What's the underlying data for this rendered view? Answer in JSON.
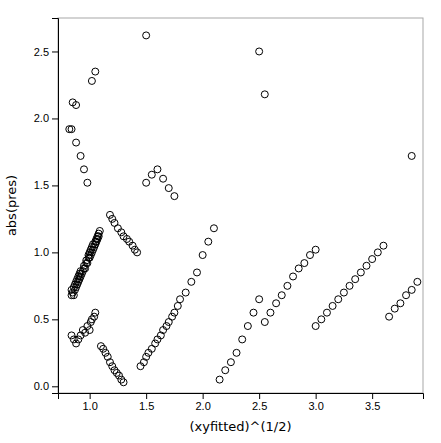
{
  "chart_data": {
    "type": "scatter",
    "xlabel": "(xyfitted)^(1/2)",
    "ylabel": "abs(pres)",
    "color": "black",
    "marker": "open-circle",
    "grid": false,
    "xlim": [
      0.72,
      3.95
    ],
    "ylim": [
      -0.05,
      2.75
    ],
    "xticks": [
      {
        "value": 1.0,
        "label": "1.0"
      },
      1.5,
      {
        "value": 2.0,
        "label": "2.0"
      },
      2.5,
      {
        "value": 3.0,
        "label": "3.0"
      },
      3.5
    ],
    "yticks": [
      {
        "value": 0.0,
        "label": "0.0"
      },
      0.5,
      {
        "value": 1.0,
        "label": "1.0"
      },
      1.5,
      {
        "value": 2.0,
        "label": "2.0"
      },
      2.5
    ],
    "x": [
      0.84,
      0.84,
      0.85,
      0.86,
      0.86,
      0.87,
      0.87,
      0.88,
      0.88,
      0.89,
      0.89,
      0.9,
      0.9,
      0.91,
      0.91,
      0.92,
      0.92,
      0.93,
      0.94,
      0.95,
      0.95,
      0.96,
      0.97,
      0.97,
      0.98,
      0.99,
      0.99,
      1.0,
      1.0,
      1.01,
      1.01,
      1.02,
      1.02,
      1.03,
      1.03,
      1.04,
      1.05,
      1.05,
      1.06,
      1.06,
      1.07,
      1.07,
      1.08,
      1.08,
      1.09,
      0.84,
      0.86,
      0.88,
      0.9,
      0.92,
      0.94,
      0.96,
      0.98,
      1.0,
      1.01,
      1.02,
      1.04,
      1.05,
      1.1,
      1.12,
      1.14,
      1.16,
      1.18,
      1.2,
      1.22,
      1.24,
      1.26,
      1.28,
      1.3,
      1.18,
      1.2,
      1.22,
      1.25,
      1.28,
      1.3,
      1.33,
      1.35,
      1.38,
      1.4,
      1.42,
      1.45,
      1.48,
      1.5,
      1.52,
      1.55,
      1.58,
      1.6,
      1.63,
      1.65,
      1.68,
      1.7,
      1.73,
      1.75,
      1.78,
      1.8,
      1.85,
      1.9,
      1.95,
      2.0,
      2.05,
      2.1,
      2.15,
      2.2,
      2.25,
      2.3,
      2.35,
      2.4,
      2.45,
      2.5,
      1.5,
      1.55,
      1.6,
      1.65,
      1.7,
      1.75,
      2.55,
      2.6,
      2.65,
      2.7,
      2.75,
      2.8,
      2.85,
      2.9,
      2.95,
      3.0,
      3.0,
      3.05,
      3.1,
      3.15,
      3.2,
      3.25,
      3.3,
      3.35,
      3.4,
      3.45,
      3.5,
      3.55,
      3.6,
      3.65,
      3.7,
      3.75,
      3.8,
      3.85,
      3.9,
      0.82,
      0.85,
      0.88,
      0.92,
      0.95,
      0.98,
      1.02,
      1.05,
      0.84,
      0.88,
      1.5,
      2.5,
      2.55,
      3.85
    ],
    "values": [
      0.68,
      0.72,
      0.7,
      0.68,
      0.74,
      0.72,
      0.76,
      0.74,
      0.78,
      0.76,
      0.8,
      0.78,
      0.82,
      0.8,
      0.84,
      0.82,
      0.86,
      0.84,
      0.86,
      0.88,
      0.9,
      0.88,
      0.92,
      0.94,
      0.92,
      0.96,
      0.98,
      0.96,
      1.0,
      0.98,
      1.02,
      1.0,
      1.04,
      1.02,
      1.06,
      1.04,
      1.08,
      1.06,
      1.1,
      1.08,
      1.12,
      1.1,
      1.14,
      1.12,
      1.16,
      0.38,
      0.35,
      0.32,
      0.35,
      0.38,
      0.42,
      0.4,
      0.45,
      0.42,
      0.48,
      0.5,
      0.52,
      0.55,
      0.3,
      0.28,
      0.25,
      0.22,
      0.18,
      0.15,
      0.12,
      0.1,
      0.08,
      0.05,
      0.03,
      1.28,
      1.25,
      1.22,
      1.18,
      1.15,
      1.12,
      1.1,
      1.08,
      1.05,
      1.02,
      1.0,
      0.15,
      0.18,
      0.22,
      0.25,
      0.28,
      0.32,
      0.35,
      0.38,
      0.42,
      0.45,
      0.48,
      0.52,
      0.55,
      0.6,
      0.65,
      0.7,
      0.78,
      0.85,
      0.98,
      1.08,
      1.18,
      0.05,
      0.12,
      0.18,
      0.25,
      0.35,
      0.45,
      0.55,
      0.65,
      1.52,
      1.58,
      1.62,
      1.55,
      1.48,
      1.42,
      0.48,
      0.55,
      0.62,
      0.68,
      0.75,
      0.82,
      0.88,
      0.92,
      0.98,
      1.02,
      0.45,
      0.5,
      0.55,
      0.6,
      0.65,
      0.7,
      0.75,
      0.8,
      0.85,
      0.9,
      0.95,
      1.0,
      1.05,
      0.52,
      0.58,
      0.62,
      0.68,
      0.72,
      0.78,
      1.92,
      2.12,
      1.82,
      1.72,
      1.62,
      1.52,
      2.28,
      2.35,
      1.92,
      2.1,
      2.62,
      2.5,
      2.18,
      1.72
    ]
  }
}
